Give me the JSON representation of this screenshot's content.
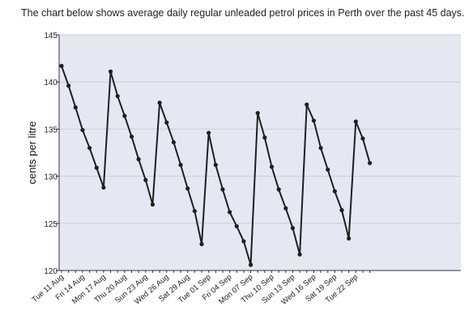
{
  "caption": "The chart below shows average daily regular unleaded petrol prices in Perth over the past 45 days.",
  "colors": {
    "plot_background": "#e3e8f2",
    "grid": "#c9cfda",
    "line": "#1f1f1f",
    "axis": "#333333"
  },
  "chart_data": {
    "type": "line",
    "title": "",
    "xlabel": "",
    "ylabel": "cents per litre",
    "ylim": [
      120,
      145
    ],
    "yticks": [
      120,
      125,
      130,
      135,
      140,
      145
    ],
    "grid": true,
    "x_tick_labels": [
      "Tue 11 Aug",
      "Fri 14 Aug",
      "Mon 17 Aug",
      "Thu 20 Aug",
      "Sun 23 Aug",
      "Wed 26 Aug",
      "Sat 29 Aug",
      "Tue 01 Sep",
      "Fri 04 Sep",
      "Mon 07 Sep",
      "Thu 10 Sep",
      "Sun 13 Sep",
      "Wed 16 Sep",
      "Sat 19 Sep",
      "Tue 22 Sep"
    ],
    "x_tick_every_days": 3,
    "series": [
      {
        "values": [
          141.7,
          139.6,
          137.3,
          134.9,
          133.0,
          130.9,
          128.8,
          141.1,
          138.5,
          136.4,
          134.2,
          131.8,
          129.6,
          127.0,
          137.8,
          135.7,
          133.6,
          131.2,
          128.7,
          126.3,
          122.8,
          134.6,
          131.2,
          128.6,
          126.2,
          124.7,
          123.1,
          120.6,
          136.7,
          134.1,
          131.0,
          128.6,
          126.6,
          124.5,
          121.7,
          137.6,
          135.9,
          133.0,
          130.7,
          128.4,
          126.4,
          123.4,
          135.8,
          134.0,
          131.4
        ]
      }
    ]
  }
}
